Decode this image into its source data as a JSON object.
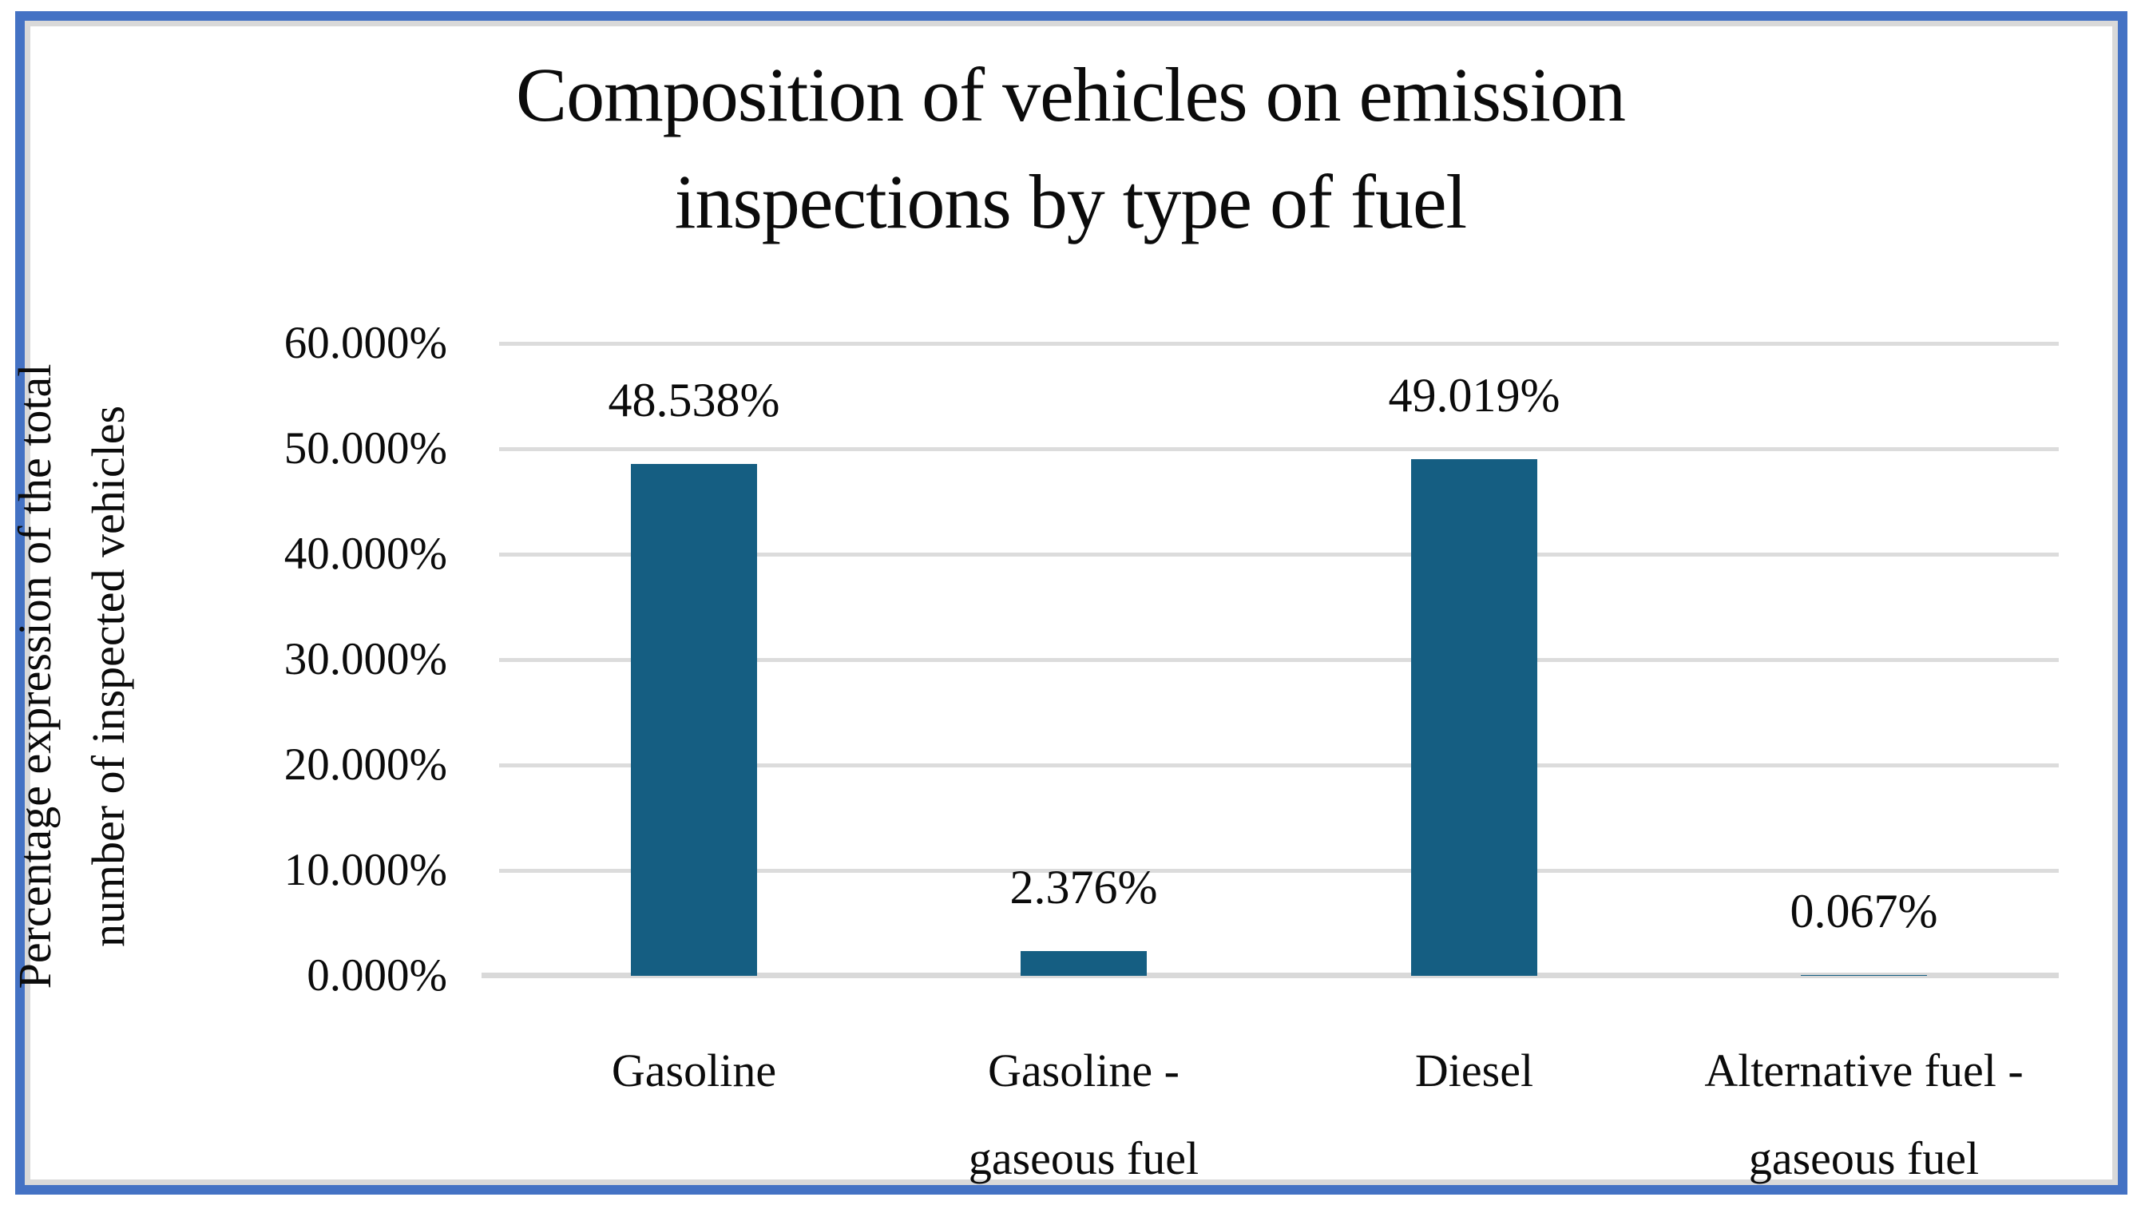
{
  "figure": {
    "border_color": "#4472C4",
    "inner_border_color": "#D9D9D9",
    "background": "#FFFFFF"
  },
  "chart_data": {
    "type": "bar",
    "title": "Composition of vehicles on emission inspections by type of fuel",
    "title_lines": [
      "Composition of vehicles on emission",
      "inspections by type of fuel"
    ],
    "ylabel": "Percentage expression of the total number of inspected vehicles",
    "ylabel_lines": [
      "Percentage expression of the total",
      "number of inspected vehicles"
    ],
    "xlabel": "",
    "categories": [
      "Gasoline",
      "Gasoline - gaseous fuel",
      "Diesel",
      "Alternative fuel - gaseous fuel"
    ],
    "category_label_lines": [
      [
        "Gasoline"
      ],
      [
        "Gasoline -",
        "gaseous fuel"
      ],
      [
        "Diesel"
      ],
      [
        "Alternative fuel -",
        "gaseous fuel"
      ]
    ],
    "values": [
      48.538,
      2.376,
      49.019,
      0.067
    ],
    "data_labels": [
      "48.538%",
      "2.376%",
      "49.019%",
      "0.067%"
    ],
    "ylim": [
      0,
      60
    ],
    "y_tick_step": 10,
    "y_tick_labels": [
      "0.000%",
      "10.000%",
      "20.000%",
      "30.000%",
      "40.000%",
      "50.000%",
      "60.000%"
    ],
    "grid": "horizontal",
    "legend": "none",
    "bar_color": "#155E82",
    "gridline_color": "#DCDCDC",
    "axis_line_color": "#D9D9D9",
    "text_color": "#0b0b0b"
  }
}
